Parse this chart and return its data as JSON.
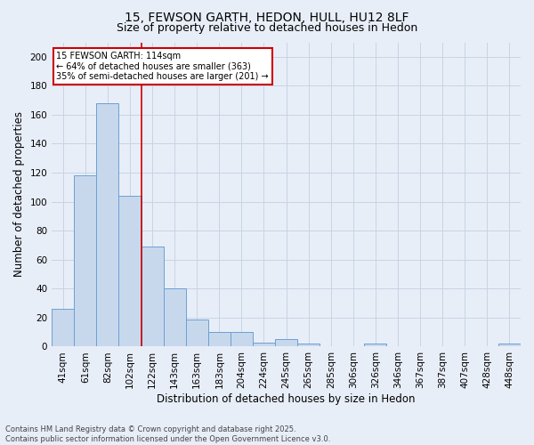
{
  "title": "15, FEWSON GARTH, HEDON, HULL, HU12 8LF",
  "subtitle": "Size of property relative to detached houses in Hedon",
  "xlabel": "Distribution of detached houses by size in Hedon",
  "ylabel": "Number of detached properties",
  "categories": [
    "41sqm",
    "61sqm",
    "82sqm",
    "102sqm",
    "122sqm",
    "143sqm",
    "163sqm",
    "183sqm",
    "204sqm",
    "224sqm",
    "245sqm",
    "265sqm",
    "285sqm",
    "306sqm",
    "326sqm",
    "346sqm",
    "367sqm",
    "387sqm",
    "407sqm",
    "428sqm",
    "448sqm"
  ],
  "values": [
    26,
    118,
    168,
    104,
    69,
    40,
    19,
    10,
    10,
    3,
    5,
    2,
    0,
    0,
    2,
    0,
    0,
    0,
    0,
    0,
    2
  ],
  "bar_color": "#c8d8ec",
  "bar_edge_color": "#6b9fd4",
  "grid_color": "#c8d4e4",
  "background_color": "#e8eef8",
  "annotation_text": "15 FEWSON GARTH: 114sqm\n← 64% of detached houses are smaller (363)\n35% of semi-detached houses are larger (201) →",
  "annotation_box_color": "#ffffff",
  "annotation_border_color": "#cc0000",
  "property_line_color": "#cc0000",
  "property_line_x": 3.5,
  "ylim": [
    0,
    210
  ],
  "yticks": [
    0,
    20,
    40,
    60,
    80,
    100,
    120,
    140,
    160,
    180,
    200
  ],
  "footer_line1": "Contains HM Land Registry data © Crown copyright and database right 2025.",
  "footer_line2": "Contains public sector information licensed under the Open Government Licence v3.0.",
  "title_fontsize": 10,
  "subtitle_fontsize": 9,
  "tick_fontsize": 7.5,
  "ylabel_fontsize": 8.5,
  "xlabel_fontsize": 8.5,
  "annotation_fontsize": 7,
  "footer_fontsize": 6
}
